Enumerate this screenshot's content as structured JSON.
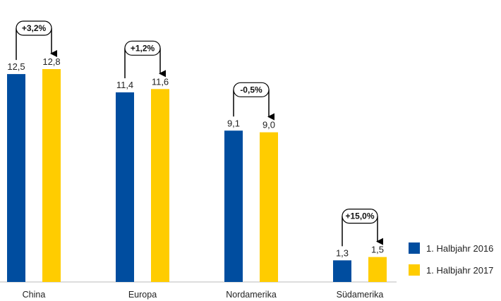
{
  "chart_data": {
    "type": "bar",
    "categories": [
      "China",
      "Europa",
      "Nordamerika",
      "Südamerika"
    ],
    "series": [
      {
        "name": "1. Halbjahr 2016",
        "values": [
          12.5,
          11.4,
          9.1,
          1.3
        ],
        "labels": [
          "12,5",
          "11,4",
          "9,1",
          "1,3"
        ],
        "color": "#004d9f"
      },
      {
        "name": "1. Halbjahr 2017",
        "values": [
          12.8,
          11.6,
          9.0,
          1.5
        ],
        "labels": [
          "12,8",
          "11,6",
          "9,0",
          "1,5"
        ],
        "color": "#ffcc00"
      }
    ],
    "changes": [
      "+3,2%",
      "+1,2%",
      "-0,5%",
      "+15,0%"
    ],
    "ylim": [
      0,
      14
    ],
    "legend_position": "bottom-right",
    "grid": false
  }
}
